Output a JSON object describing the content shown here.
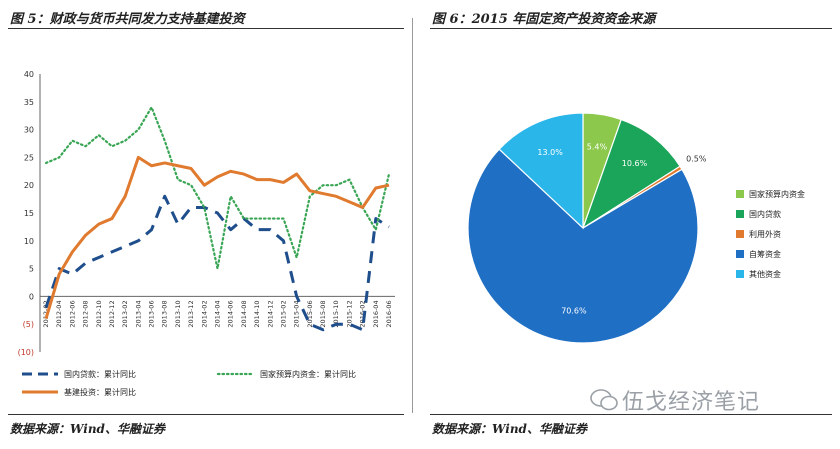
{
  "left_title": "图 5：财政与货币共同发力支持基建投资",
  "right_title": "图 6：2015 年固定资产投资资金来源",
  "left_source": "数据来源：Wind、华融证券",
  "right_source": "数据来源：Wind、华融证券",
  "watermark": "伍戈经济笔记",
  "chart_data": [
    {
      "type": "line",
      "ylim": [
        -10,
        40
      ],
      "yticks": [
        "40",
        "35",
        "30",
        "25",
        "20",
        "15",
        "10",
        "5",
        "0",
        "(5)",
        "(10)"
      ],
      "x": [
        "2012-02",
        "2012-04",
        "2012-06",
        "2012-08",
        "2012-10",
        "2012-12",
        "2013-02",
        "2013-04",
        "2013-06",
        "2013-08",
        "2013-10",
        "2013-12",
        "2014-02",
        "2014-04",
        "2014-06",
        "2014-08",
        "2014-10",
        "2014-12",
        "2015-02",
        "2015-04",
        "2015-06",
        "2015-08",
        "2015-10",
        "2015-12",
        "2016-02",
        "2016-04",
        "2016-06"
      ],
      "grid": false,
      "legend_position": "bottom",
      "series": [
        {
          "name": "国内贷款：累计同比",
          "style": "dashed",
          "color": "#1f4e8c",
          "values": [
            -2,
            5,
            4,
            6,
            7,
            8,
            9,
            10,
            12,
            18,
            13,
            16,
            16,
            15,
            12,
            14,
            12,
            12,
            10,
            0,
            -5,
            -6,
            -5,
            -5,
            -6,
            14,
            12.5
          ]
        },
        {
          "name": "国家预算内资金：累计同比",
          "style": "dotted",
          "color": "#3aa655",
          "values": [
            24,
            25,
            28,
            27,
            29,
            27,
            28,
            30,
            34,
            28,
            21,
            20,
            16,
            5,
            18,
            14,
            14,
            14,
            14,
            7,
            18,
            20,
            20,
            21,
            16,
            12,
            22
          ]
        },
        {
          "name": "基建投资：累计同比",
          "style": "solid",
          "color": "#e07a2e",
          "values": [
            -4,
            4,
            8,
            11,
            13,
            14,
            18,
            25,
            23.5,
            24,
            23.5,
            23,
            20,
            21.5,
            22.5,
            22,
            21,
            21,
            20.5,
            22,
            19,
            18.5,
            18,
            17,
            16,
            19.5,
            20
          ]
        }
      ]
    },
    {
      "type": "pie",
      "legend_position": "right",
      "slices": [
        {
          "label": "国家预算内资金",
          "value": 5.4,
          "display": "5.4%",
          "color": "#8cc84b"
        },
        {
          "label": "国内贷款",
          "value": 10.6,
          "display": "10.6%",
          "color": "#1aa55a"
        },
        {
          "label": "利用外资",
          "value": 0.5,
          "display": "0.5%",
          "color": "#e07a2e"
        },
        {
          "label": "自筹资金",
          "value": 70.6,
          "display": "70.6%",
          "color": "#1f6fc5"
        },
        {
          "label": "其他资金",
          "value": 13.0,
          "display": "13.0%",
          "color": "#2bb6ea"
        }
      ]
    }
  ]
}
